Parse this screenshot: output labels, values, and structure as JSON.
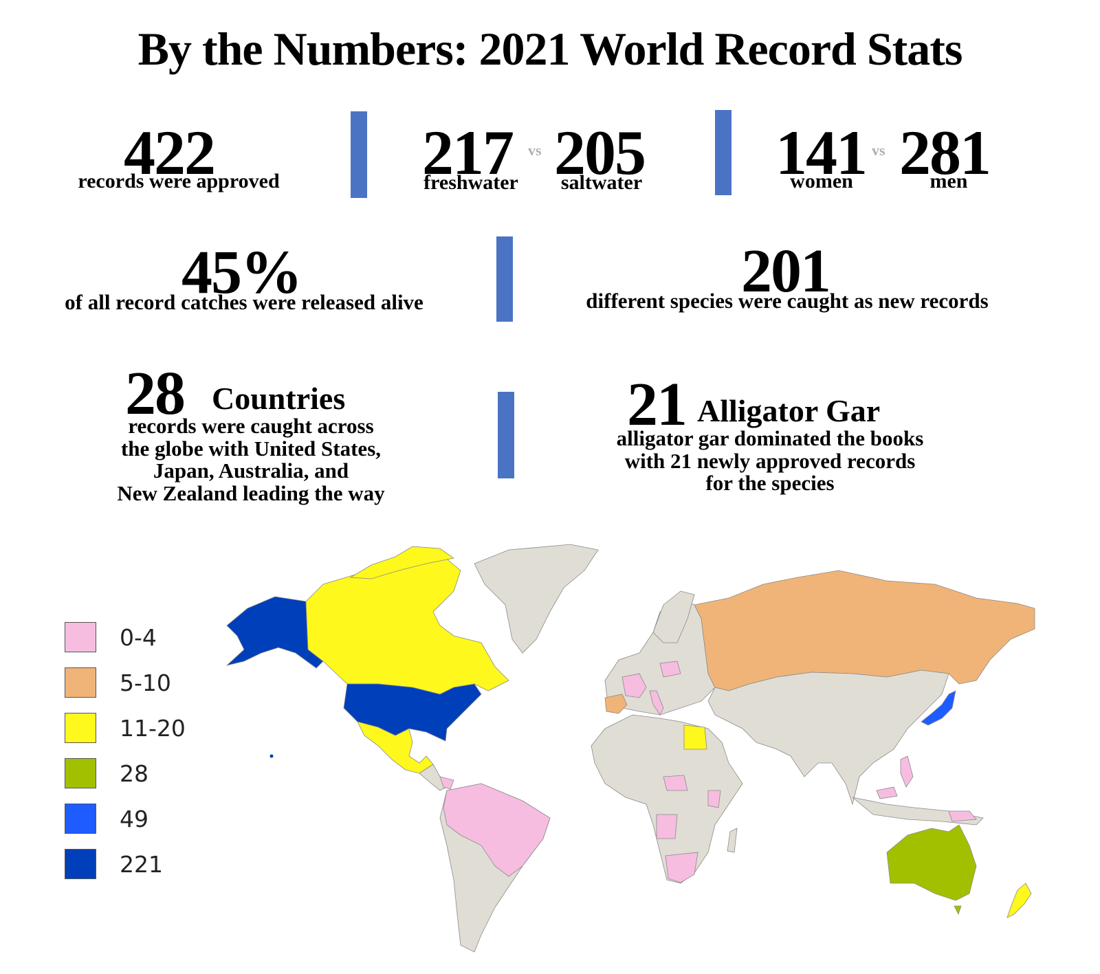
{
  "title": "By the Numbers: 2021 World Record Stats",
  "stats": {
    "approved": {
      "value": "422",
      "label": "records were approved"
    },
    "water": {
      "fresh_value": "217",
      "fresh_label": "freshwater",
      "vs": "vs",
      "salt_value": "205",
      "salt_label": "saltwater"
    },
    "gender": {
      "women_value": "141",
      "women_label": "women",
      "vs": "vs",
      "men_value": "281",
      "men_label": "men"
    },
    "released": {
      "value": "45%",
      "label": "of all record catches were released alive"
    },
    "species": {
      "value": "201",
      "label": "different species were caught as new records"
    },
    "countries": {
      "value": "28",
      "heading": "Countries",
      "line1": "records were caught across",
      "line2": "the globe with United States,",
      "line3": "Japan, Australia, and",
      "line4": "New Zealand leading the way"
    },
    "gar": {
      "value": "21",
      "heading": "Alligator Gar",
      "line1": "alligator gar dominated the books",
      "line2": "with 21 newly approved records",
      "line3": "for the species"
    }
  },
  "colors": {
    "divider": "#4a74c3",
    "land": "#e0ddd5",
    "pink": "#f7bde0",
    "orange": "#f0b478",
    "yellow": "#fff81c",
    "green": "#a3c000",
    "lightblue": "#1f5cff",
    "darkblue": "#003fba"
  },
  "legend": [
    {
      "label": "0-4",
      "color": "#f7bde0"
    },
    {
      "label": "5-10",
      "color": "#f0b478"
    },
    {
      "label": "11-20",
      "color": "#fff81c"
    },
    {
      "label": "28",
      "color": "#a3c000"
    },
    {
      "label": "49",
      "color": "#1f5cff"
    },
    {
      "label": "221",
      "color": "#003fba"
    }
  ]
}
